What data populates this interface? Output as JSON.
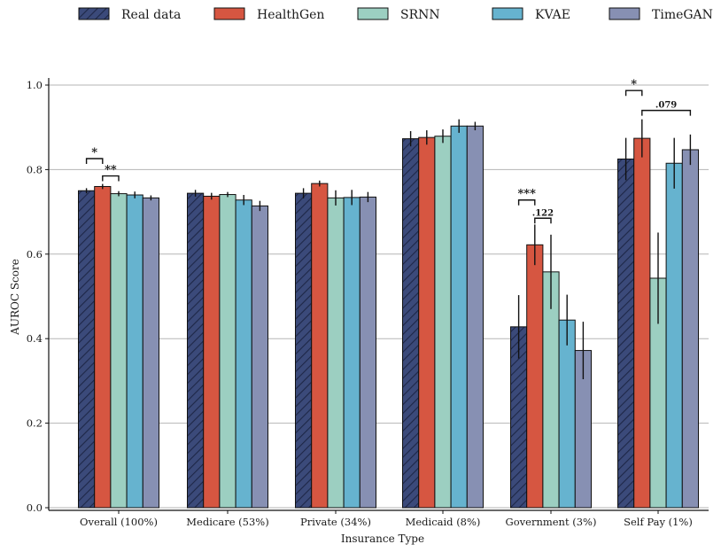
{
  "chart_data": {
    "type": "bar",
    "xlabel": "Insurance Type",
    "ylabel": "AUROC Score",
    "ylim": [
      0,
      1.0
    ],
    "yticks": [
      "0.0",
      "0.2",
      "0.4",
      "0.6",
      "0.8",
      "1.0"
    ],
    "grid": "horizontal",
    "legend_position": "top",
    "categories": [
      "Overall (100%)",
      "Medicare (53%)",
      "Private (34%)",
      "Medicaid (8%)",
      "Government (3%)",
      "Self Pay (1%)"
    ],
    "series": [
      {
        "name": "Real data",
        "color": "#3b4a7a",
        "hatch": true,
        "values": [
          0.75,
          0.744,
          0.744,
          0.873,
          0.428,
          0.825
        ],
        "errors": [
          0.006,
          0.008,
          0.012,
          0.018,
          0.075,
          0.05
        ]
      },
      {
        "name": "HealthGen",
        "color": "#d65641",
        "values": [
          0.76,
          0.737,
          0.767,
          0.876,
          0.622,
          0.874
        ],
        "errors": [
          0.006,
          0.008,
          0.007,
          0.017,
          0.048,
          0.045
        ]
      },
      {
        "name": "SRNN",
        "color": "#9ccfc1",
        "values": [
          0.743,
          0.741,
          0.733,
          0.879,
          0.558,
          0.543
        ],
        "errors": [
          0.006,
          0.006,
          0.018,
          0.016,
          0.088,
          0.108
        ]
      },
      {
        "name": "KVAE",
        "color": "#66b3cf",
        "values": [
          0.74,
          0.728,
          0.734,
          0.903,
          0.444,
          0.815
        ],
        "errors": [
          0.008,
          0.012,
          0.018,
          0.016,
          0.06,
          0.06
        ]
      },
      {
        "name": "TimeGAN",
        "color": "#8790b3",
        "values": [
          0.733,
          0.714,
          0.735,
          0.903,
          0.372,
          0.847
        ],
        "errors": [
          0.006,
          0.012,
          0.012,
          0.01,
          0.068,
          0.036
        ]
      }
    ],
    "annotations": [
      {
        "category": 0,
        "from": 0,
        "to": 1,
        "label": "*",
        "y": 0.826,
        "small": false
      },
      {
        "category": 0,
        "from": 1,
        "to": 2,
        "label": "**",
        "y": 0.785,
        "small": false
      },
      {
        "category": 4,
        "from": 0,
        "to": 1,
        "label": "***",
        "y": 0.728,
        "small": false
      },
      {
        "category": 4,
        "from": 1,
        "to": 2,
        "label": ".122",
        "y": 0.685,
        "small": true
      },
      {
        "category": 5,
        "from": 0,
        "to": 1,
        "label": "*",
        "y": 0.987,
        "small": false
      },
      {
        "category": 5,
        "from": 1,
        "to": 4,
        "label": ".079",
        "y": 0.94,
        "small": true
      }
    ]
  }
}
